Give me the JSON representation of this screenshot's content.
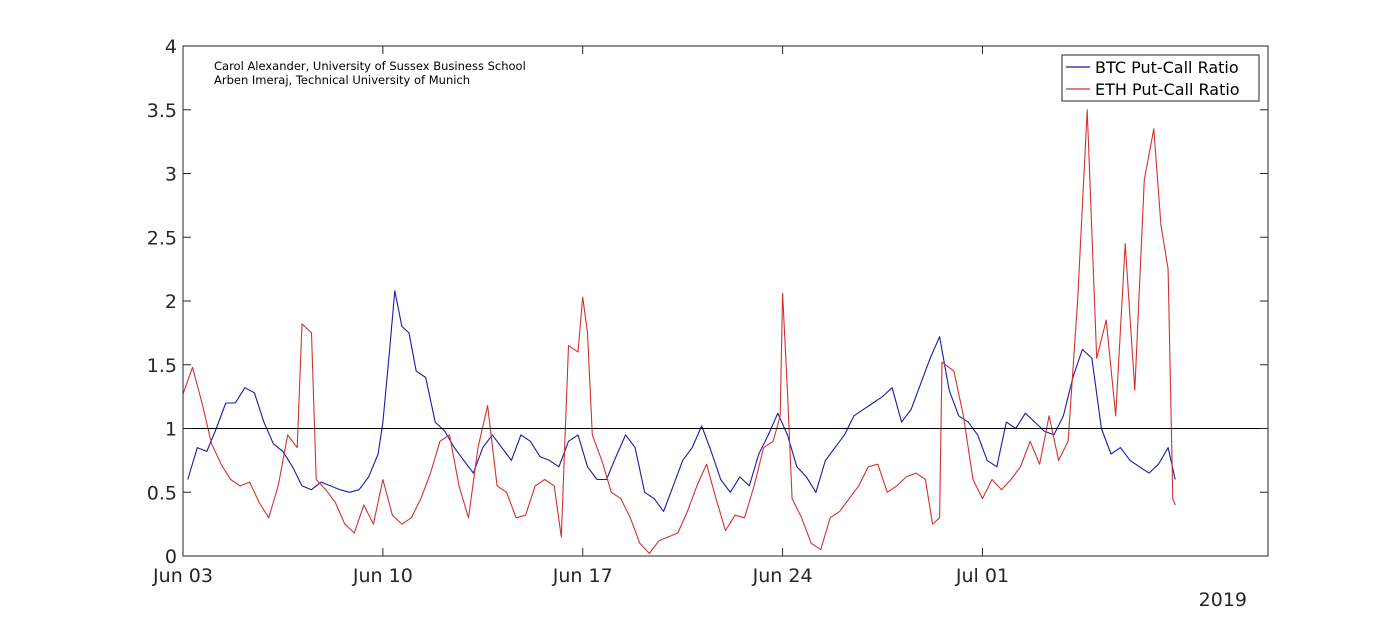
{
  "chart_data": {
    "type": "line",
    "title": "",
    "xlabel": "",
    "ylabel": "",
    "xlim": [
      "2019-06-03",
      "2019-07-11"
    ],
    "ylim": [
      0,
      4
    ],
    "yticks": [
      0,
      0.5,
      1,
      1.5,
      2,
      2.5,
      3,
      3.5,
      4
    ],
    "ytick_labels": [
      "0",
      "0.5",
      "1",
      "1.5",
      "2",
      "2.5",
      "3",
      "3.5",
      "4"
    ],
    "xticks": [
      "2019-06-03",
      "2019-06-10",
      "2019-06-17",
      "2019-06-24",
      "2019-07-01"
    ],
    "xtick_labels": [
      "Jun 03",
      "Jun 10",
      "Jun 17",
      "Jun 24",
      "Jul 01"
    ],
    "year_label": "2019",
    "grid": false,
    "legend_position": "top-right",
    "reference_line": {
      "y": 1,
      "color": "#000000"
    },
    "credits": [
      "Carol Alexander, University of Sussex Business School",
      "Arben Imeraj, Technical University of Munich"
    ],
    "series": [
      {
        "name": "BTC Put-Call Ratio",
        "color": "#1a1aa6",
        "points": [
          [
            "2019-06-03 04:00",
            0.6
          ],
          [
            "2019-06-03 12:00",
            0.85
          ],
          [
            "2019-06-03 20:00",
            0.82
          ],
          [
            "2019-06-04 04:00",
            1.0
          ],
          [
            "2019-06-04 12:00",
            1.2
          ],
          [
            "2019-06-04 20:00",
            1.2
          ],
          [
            "2019-06-05 04:00",
            1.32
          ],
          [
            "2019-06-05 12:00",
            1.28
          ],
          [
            "2019-06-05 20:00",
            1.05
          ],
          [
            "2019-06-06 04:00",
            0.88
          ],
          [
            "2019-06-06 12:00",
            0.82
          ],
          [
            "2019-06-06 20:00",
            0.7
          ],
          [
            "2019-06-07 04:00",
            0.55
          ],
          [
            "2019-06-07 12:00",
            0.52
          ],
          [
            "2019-06-07 20:00",
            0.58
          ],
          [
            "2019-06-08 04:00",
            0.55
          ],
          [
            "2019-06-08 12:00",
            0.52
          ],
          [
            "2019-06-08 20:00",
            0.5
          ],
          [
            "2019-06-09 04:00",
            0.52
          ],
          [
            "2019-06-09 12:00",
            0.62
          ],
          [
            "2019-06-09 20:00",
            0.8
          ],
          [
            "2019-06-10 00:00",
            1.05
          ],
          [
            "2019-06-10 06:00",
            1.65
          ],
          [
            "2019-06-10 10:00",
            2.08
          ],
          [
            "2019-06-10 16:00",
            1.8
          ],
          [
            "2019-06-10 22:00",
            1.75
          ],
          [
            "2019-06-11 04:00",
            1.45
          ],
          [
            "2019-06-11 12:00",
            1.4
          ],
          [
            "2019-06-11 20:00",
            1.05
          ],
          [
            "2019-06-12 04:00",
            0.98
          ],
          [
            "2019-06-12 12:00",
            0.85
          ],
          [
            "2019-06-12 20:00",
            0.75
          ],
          [
            "2019-06-13 04:00",
            0.65
          ],
          [
            "2019-06-13 12:00",
            0.85
          ],
          [
            "2019-06-13 20:00",
            0.95
          ],
          [
            "2019-06-14 04:00",
            0.85
          ],
          [
            "2019-06-14 12:00",
            0.75
          ],
          [
            "2019-06-14 20:00",
            0.95
          ],
          [
            "2019-06-15 04:00",
            0.9
          ],
          [
            "2019-06-15 12:00",
            0.78
          ],
          [
            "2019-06-15 20:00",
            0.75
          ],
          [
            "2019-06-16 04:00",
            0.7
          ],
          [
            "2019-06-16 12:00",
            0.9
          ],
          [
            "2019-06-16 20:00",
            0.95
          ],
          [
            "2019-06-17 04:00",
            0.7
          ],
          [
            "2019-06-17 12:00",
            0.6
          ],
          [
            "2019-06-17 20:00",
            0.6
          ],
          [
            "2019-06-18 04:00",
            0.78
          ],
          [
            "2019-06-18 12:00",
            0.95
          ],
          [
            "2019-06-18 20:00",
            0.85
          ],
          [
            "2019-06-19 04:00",
            0.5
          ],
          [
            "2019-06-19 12:00",
            0.45
          ],
          [
            "2019-06-19 20:00",
            0.35
          ],
          [
            "2019-06-20 04:00",
            0.55
          ],
          [
            "2019-06-20 12:00",
            0.75
          ],
          [
            "2019-06-20 20:00",
            0.85
          ],
          [
            "2019-06-21 04:00",
            1.02
          ],
          [
            "2019-06-21 12:00",
            0.82
          ],
          [
            "2019-06-21 20:00",
            0.6
          ],
          [
            "2019-06-22 04:00",
            0.5
          ],
          [
            "2019-06-22 12:00",
            0.62
          ],
          [
            "2019-06-22 20:00",
            0.55
          ],
          [
            "2019-06-23 04:00",
            0.8
          ],
          [
            "2019-06-23 12:00",
            0.95
          ],
          [
            "2019-06-23 20:00",
            1.12
          ],
          [
            "2019-06-24 04:00",
            0.95
          ],
          [
            "2019-06-24 12:00",
            0.7
          ],
          [
            "2019-06-24 20:00",
            0.62
          ],
          [
            "2019-06-25 04:00",
            0.5
          ],
          [
            "2019-06-25 12:00",
            0.75
          ],
          [
            "2019-06-25 20:00",
            0.85
          ],
          [
            "2019-06-26 04:00",
            0.95
          ],
          [
            "2019-06-26 12:00",
            1.1
          ],
          [
            "2019-06-26 20:00",
            1.15
          ],
          [
            "2019-06-27 04:00",
            1.2
          ],
          [
            "2019-06-27 12:00",
            1.25
          ],
          [
            "2019-06-27 20:00",
            1.32
          ],
          [
            "2019-06-28 04:00",
            1.05
          ],
          [
            "2019-06-28 12:00",
            1.15
          ],
          [
            "2019-06-28 20:00",
            1.35
          ],
          [
            "2019-06-29 04:00",
            1.55
          ],
          [
            "2019-06-29 12:00",
            1.72
          ],
          [
            "2019-06-29 20:00",
            1.3
          ],
          [
            "2019-06-30 04:00",
            1.1
          ],
          [
            "2019-06-30 12:00",
            1.05
          ],
          [
            "2019-06-30 20:00",
            0.95
          ],
          [
            "2019-07-01 04:00",
            0.75
          ],
          [
            "2019-07-01 12:00",
            0.7
          ],
          [
            "2019-07-01 20:00",
            1.05
          ],
          [
            "2019-07-02 04:00",
            1.0
          ],
          [
            "2019-07-02 12:00",
            1.12
          ],
          [
            "2019-07-02 20:00",
            1.05
          ],
          [
            "2019-07-03 04:00",
            0.98
          ],
          [
            "2019-07-03 12:00",
            0.95
          ],
          [
            "2019-07-03 20:00",
            1.1
          ],
          [
            "2019-07-04 04:00",
            1.4
          ],
          [
            "2019-07-04 12:00",
            1.62
          ],
          [
            "2019-07-04 20:00",
            1.55
          ],
          [
            "2019-07-05 04:00",
            1.0
          ],
          [
            "2019-07-05 12:00",
            0.8
          ],
          [
            "2019-07-05 20:00",
            0.85
          ],
          [
            "2019-07-06 04:00",
            0.75
          ],
          [
            "2019-07-06 12:00",
            0.7
          ],
          [
            "2019-07-06 20:00",
            0.65
          ],
          [
            "2019-07-07 04:00",
            0.72
          ],
          [
            "2019-07-07 12:00",
            0.85
          ],
          [
            "2019-07-07 18:00",
            0.6
          ]
        ]
      },
      {
        "name": "ETH Put-Call Ratio",
        "color": "#d23232",
        "points": [
          [
            "2019-06-03 00:00",
            1.27
          ],
          [
            "2019-06-03 08:00",
            1.48
          ],
          [
            "2019-06-03 16:00",
            1.2
          ],
          [
            "2019-06-04 00:00",
            0.88
          ],
          [
            "2019-06-04 08:00",
            0.72
          ],
          [
            "2019-06-04 16:00",
            0.6
          ],
          [
            "2019-06-05 00:00",
            0.55
          ],
          [
            "2019-06-05 08:00",
            0.58
          ],
          [
            "2019-06-05 16:00",
            0.42
          ],
          [
            "2019-06-06 00:00",
            0.3
          ],
          [
            "2019-06-06 08:00",
            0.55
          ],
          [
            "2019-06-06 16:00",
            0.95
          ],
          [
            "2019-06-07 00:00",
            0.85
          ],
          [
            "2019-06-07 04:00",
            1.82
          ],
          [
            "2019-06-07 12:00",
            1.75
          ],
          [
            "2019-06-07 16:00",
            0.6
          ],
          [
            "2019-06-08 00:00",
            0.52
          ],
          [
            "2019-06-08 08:00",
            0.42
          ],
          [
            "2019-06-08 16:00",
            0.25
          ],
          [
            "2019-06-09 00:00",
            0.18
          ],
          [
            "2019-06-09 08:00",
            0.4
          ],
          [
            "2019-06-09 16:00",
            0.25
          ],
          [
            "2019-06-10 00:00",
            0.6
          ],
          [
            "2019-06-10 08:00",
            0.32
          ],
          [
            "2019-06-10 16:00",
            0.25
          ],
          [
            "2019-06-11 00:00",
            0.3
          ],
          [
            "2019-06-11 08:00",
            0.45
          ],
          [
            "2019-06-11 16:00",
            0.65
          ],
          [
            "2019-06-12 00:00",
            0.9
          ],
          [
            "2019-06-12 08:00",
            0.95
          ],
          [
            "2019-06-12 16:00",
            0.55
          ],
          [
            "2019-06-13 00:00",
            0.3
          ],
          [
            "2019-06-13 08:00",
            0.85
          ],
          [
            "2019-06-13 16:00",
            1.18
          ],
          [
            "2019-06-14 00:00",
            0.55
          ],
          [
            "2019-06-14 08:00",
            0.5
          ],
          [
            "2019-06-14 16:00",
            0.3
          ],
          [
            "2019-06-15 00:00",
            0.32
          ],
          [
            "2019-06-15 08:00",
            0.55
          ],
          [
            "2019-06-15 16:00",
            0.6
          ],
          [
            "2019-06-16 00:00",
            0.55
          ],
          [
            "2019-06-16 06:00",
            0.15
          ],
          [
            "2019-06-16 12:00",
            1.65
          ],
          [
            "2019-06-16 20:00",
            1.6
          ],
          [
            "2019-06-17 00:00",
            2.03
          ],
          [
            "2019-06-17 04:00",
            1.75
          ],
          [
            "2019-06-17 08:00",
            0.95
          ],
          [
            "2019-06-17 16:00",
            0.75
          ],
          [
            "2019-06-18 00:00",
            0.5
          ],
          [
            "2019-06-18 08:00",
            0.45
          ],
          [
            "2019-06-18 16:00",
            0.3
          ],
          [
            "2019-06-19 00:00",
            0.1
          ],
          [
            "2019-06-19 08:00",
            0.02
          ],
          [
            "2019-06-19 16:00",
            0.12
          ],
          [
            "2019-06-20 00:00",
            0.15
          ],
          [
            "2019-06-20 08:00",
            0.18
          ],
          [
            "2019-06-20 16:00",
            0.35
          ],
          [
            "2019-06-21 00:00",
            0.55
          ],
          [
            "2019-06-21 08:00",
            0.72
          ],
          [
            "2019-06-21 16:00",
            0.45
          ],
          [
            "2019-06-22 00:00",
            0.2
          ],
          [
            "2019-06-22 08:00",
            0.32
          ],
          [
            "2019-06-22 16:00",
            0.3
          ],
          [
            "2019-06-23 00:00",
            0.55
          ],
          [
            "2019-06-23 08:00",
            0.85
          ],
          [
            "2019-06-23 16:00",
            0.9
          ],
          [
            "2019-06-23 22:00",
            1.1
          ],
          [
            "2019-06-24 00:00",
            2.06
          ],
          [
            "2019-06-24 04:00",
            1.3
          ],
          [
            "2019-06-24 08:00",
            0.45
          ],
          [
            "2019-06-24 16:00",
            0.3
          ],
          [
            "2019-06-25 00:00",
            0.1
          ],
          [
            "2019-06-25 08:00",
            0.05
          ],
          [
            "2019-06-25 16:00",
            0.3
          ],
          [
            "2019-06-26 00:00",
            0.35
          ],
          [
            "2019-06-26 08:00",
            0.45
          ],
          [
            "2019-06-26 16:00",
            0.55
          ],
          [
            "2019-06-27 00:00",
            0.7
          ],
          [
            "2019-06-27 08:00",
            0.72
          ],
          [
            "2019-06-27 16:00",
            0.5
          ],
          [
            "2019-06-28 00:00",
            0.55
          ],
          [
            "2019-06-28 08:00",
            0.62
          ],
          [
            "2019-06-28 16:00",
            0.65
          ],
          [
            "2019-06-29 00:00",
            0.6
          ],
          [
            "2019-06-29 06:00",
            0.25
          ],
          [
            "2019-06-29 12:00",
            0.3
          ],
          [
            "2019-06-29 14:00",
            1.52
          ],
          [
            "2019-06-30 00:00",
            1.45
          ],
          [
            "2019-06-30 08:00",
            1.1
          ],
          [
            "2019-06-30 16:00",
            0.6
          ],
          [
            "2019-07-01 00:00",
            0.45
          ],
          [
            "2019-07-01 08:00",
            0.6
          ],
          [
            "2019-07-01 16:00",
            0.52
          ],
          [
            "2019-07-02 00:00",
            0.6
          ],
          [
            "2019-07-02 08:00",
            0.7
          ],
          [
            "2019-07-02 16:00",
            0.9
          ],
          [
            "2019-07-03 00:00",
            0.72
          ],
          [
            "2019-07-03 08:00",
            1.1
          ],
          [
            "2019-07-03 16:00",
            0.75
          ],
          [
            "2019-07-04 00:00",
            0.9
          ],
          [
            "2019-07-04 08:00",
            2.0
          ],
          [
            "2019-07-04 16:00",
            3.5
          ],
          [
            "2019-07-05 00:00",
            1.55
          ],
          [
            "2019-07-05 08:00",
            1.85
          ],
          [
            "2019-07-05 16:00",
            1.1
          ],
          [
            "2019-07-06 00:00",
            2.45
          ],
          [
            "2019-07-06 08:00",
            1.3
          ],
          [
            "2019-07-06 16:00",
            2.95
          ],
          [
            "2019-07-07 00:00",
            3.35
          ],
          [
            "2019-07-07 06:00",
            2.6
          ],
          [
            "2019-07-07 12:00",
            2.25
          ],
          [
            "2019-07-07 16:00",
            0.45
          ],
          [
            "2019-07-07 18:00",
            0.4
          ]
        ]
      }
    ]
  }
}
